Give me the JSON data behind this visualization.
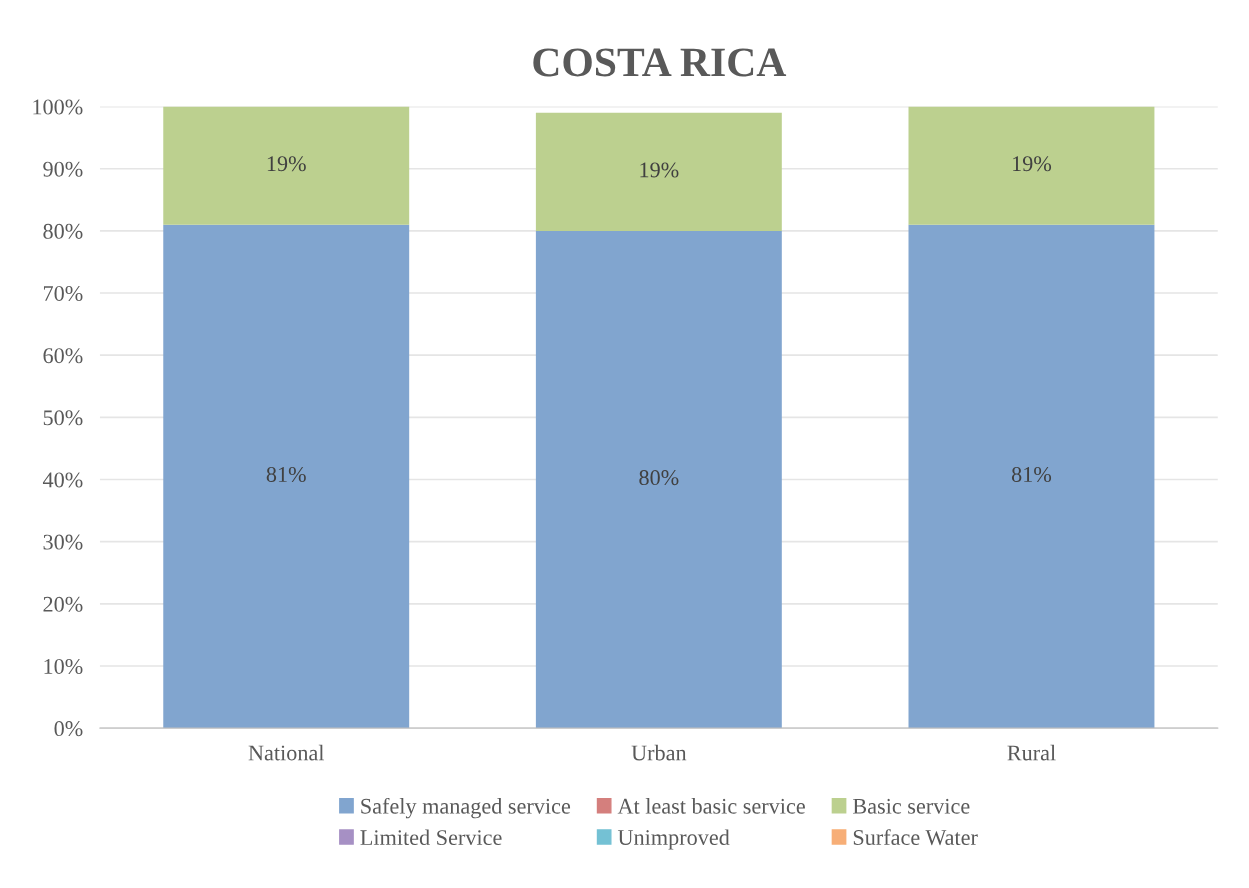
{
  "chart_data": {
    "type": "bar",
    "title": "COSTA RICA",
    "categories": [
      "National",
      "Urban",
      "Rural"
    ],
    "stacked": true,
    "series": [
      {
        "name": "Safely managed service",
        "color": "#81a5cf",
        "values": [
          81,
          80,
          81
        ],
        "value_labels": [
          "81%",
          "80%",
          "81%"
        ]
      },
      {
        "name": "At least basic service",
        "color": "#d47f7d",
        "values": [
          null,
          null,
          null
        ]
      },
      {
        "name": "Basic service",
        "color": "#bcd08f",
        "values": [
          19,
          19,
          19
        ],
        "value_labels": [
          "19%",
          "19%",
          "19%"
        ]
      },
      {
        "name": "Limited Service",
        "color": "#a690c4",
        "values": [
          null,
          null,
          null
        ]
      },
      {
        "name": "Unimproved",
        "color": "#74c1d4",
        "values": [
          null,
          null,
          null
        ]
      },
      {
        "name": "Surface Water",
        "color": "#f7ae77",
        "values": [
          null,
          null,
          null
        ]
      }
    ],
    "ylim": [
      0,
      100
    ],
    "yticks": [
      {
        "value": 0,
        "label": "0%"
      },
      {
        "value": 10,
        "label": "10%"
      },
      {
        "value": 20,
        "label": "20%"
      },
      {
        "value": 30,
        "label": "30%"
      },
      {
        "value": 40,
        "label": "40%"
      },
      {
        "value": 50,
        "label": "50%"
      },
      {
        "value": 60,
        "label": "60%"
      },
      {
        "value": 70,
        "label": "70%"
      },
      {
        "value": 80,
        "label": "80%"
      },
      {
        "value": 90,
        "label": "90%"
      },
      {
        "value": 100,
        "label": "100%"
      }
    ],
    "grid": "y",
    "legend": "bottom"
  }
}
